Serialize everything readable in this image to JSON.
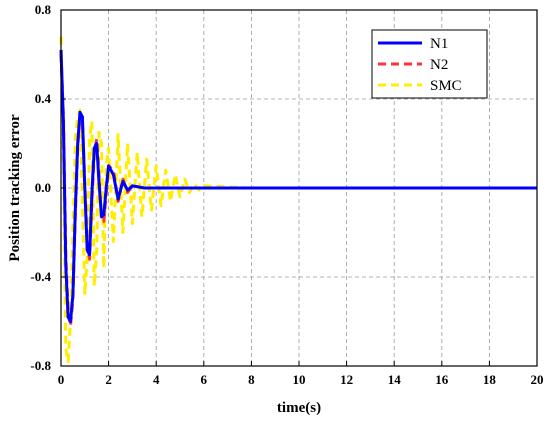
{
  "chart_data": {
    "type": "line",
    "xlabel": "time(s)",
    "ylabel": "Position tracking error",
    "xlim": [
      0,
      20
    ],
    "ylim": [
      -0.8,
      0.8
    ],
    "xticks": [
      0,
      2,
      4,
      6,
      8,
      10,
      12,
      14,
      16,
      18,
      20
    ],
    "yticks": [
      -0.8,
      -0.4,
      0.0,
      0.4,
      0.8
    ],
    "xtick_labels": [
      "0",
      "2",
      "4",
      "6",
      "8",
      "10",
      "12",
      "14",
      "16",
      "18",
      "20"
    ],
    "ytick_labels": [
      "-0.8",
      "-0.4",
      "0.0",
      "0.4",
      "0.8"
    ],
    "grid": true,
    "legend_position": "top-right",
    "series": [
      {
        "name": "N1",
        "color": "#0000ff",
        "style": "solid",
        "x": [
          0,
          0.1,
          0.2,
          0.3,
          0.4,
          0.5,
          0.6,
          0.7,
          0.8,
          0.9,
          1.0,
          1.1,
          1.2,
          1.3,
          1.4,
          1.5,
          1.6,
          1.7,
          1.8,
          1.9,
          2.0,
          2.2,
          2.4,
          2.6,
          2.8,
          3.0,
          3.5,
          4.0,
          5.0,
          6.0,
          8.0,
          10.0,
          12.0,
          14.0,
          16.0,
          18.0,
          20.0
        ],
        "y": [
          0.62,
          0.3,
          -0.35,
          -0.58,
          -0.6,
          -0.48,
          -0.1,
          0.2,
          0.34,
          0.32,
          0.0,
          -0.28,
          -0.3,
          -0.02,
          0.18,
          0.2,
          0.02,
          -0.13,
          -0.12,
          0.0,
          0.1,
          0.06,
          -0.05,
          0.03,
          -0.01,
          0.01,
          0.0,
          0.0,
          0.0,
          0.0,
          0.0,
          0.0,
          0.0,
          0.0,
          0.0,
          0.0,
          0.0
        ]
      },
      {
        "name": "N2",
        "color": "#ff3333",
        "style": "dashed",
        "x": [
          0,
          0.1,
          0.2,
          0.3,
          0.4,
          0.5,
          0.6,
          0.7,
          0.8,
          0.9,
          1.0,
          1.1,
          1.2,
          1.3,
          1.4,
          1.5,
          1.6,
          1.7,
          1.8,
          1.9,
          2.0,
          2.2,
          2.4,
          2.6,
          2.8,
          3.0,
          3.5,
          4.0,
          5.0,
          6.0,
          8.0,
          10.0,
          12.0,
          14.0,
          16.0,
          18.0,
          20.0
        ],
        "y": [
          0.6,
          0.32,
          -0.3,
          -0.55,
          -0.62,
          -0.5,
          -0.12,
          0.18,
          0.33,
          0.3,
          0.02,
          -0.26,
          -0.32,
          -0.06,
          0.16,
          0.22,
          0.05,
          -0.14,
          -0.15,
          -0.03,
          0.1,
          0.08,
          -0.06,
          0.04,
          -0.02,
          0.01,
          0.0,
          0.0,
          0.0,
          0.0,
          0.0,
          0.0,
          0.0,
          0.0,
          0.0,
          0.0,
          0.0
        ]
      },
      {
        "name": "SMC",
        "color": "#ffee00",
        "style": "dashed",
        "x": [
          0,
          0.1,
          0.2,
          0.3,
          0.4,
          0.5,
          0.6,
          0.7,
          0.8,
          0.9,
          1.0,
          1.1,
          1.2,
          1.3,
          1.4,
          1.5,
          1.6,
          1.7,
          1.8,
          1.9,
          2.0,
          2.2,
          2.4,
          2.6,
          2.8,
          3.0,
          3.2,
          3.4,
          3.6,
          3.8,
          4.0,
          4.2,
          4.4,
          4.6,
          4.8,
          5.0,
          5.2,
          5.4,
          5.6,
          5.8,
          6.0,
          8.0,
          10.0,
          12.0,
          14.0,
          16.0,
          18.0,
          20.0
        ],
        "y": [
          0.68,
          0.1,
          -0.72,
          -0.78,
          -0.6,
          -0.2,
          0.22,
          0.32,
          0.35,
          -0.05,
          -0.48,
          -0.32,
          0.22,
          0.3,
          -0.44,
          -0.28,
          0.25,
          0.2,
          -0.36,
          0.1,
          0.18,
          -0.24,
          0.24,
          -0.2,
          0.2,
          -0.16,
          0.16,
          -0.13,
          0.13,
          -0.1,
          0.1,
          -0.08,
          0.08,
          -0.06,
          0.06,
          -0.04,
          0.04,
          -0.02,
          0.02,
          -0.01,
          0.01,
          0.0,
          0.0,
          0.0,
          0.0,
          0.0,
          0.0,
          0.0
        ]
      }
    ]
  }
}
